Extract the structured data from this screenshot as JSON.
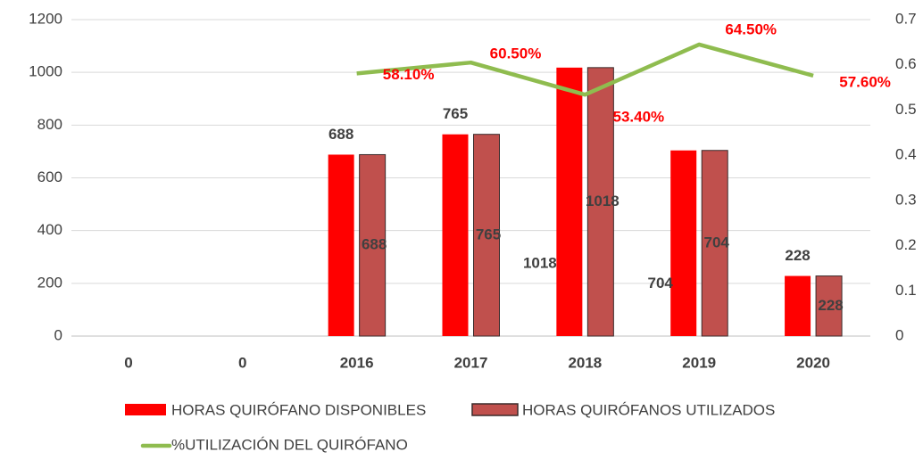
{
  "chart_data": {
    "type": "bar",
    "categories": [
      "0",
      "0",
      "2016",
      "2017",
      "2018",
      "2019",
      "2020"
    ],
    "series": [
      {
        "name": "HORAS QUIRÓFANO DISPONIBLES",
        "color": "#ff0000",
        "values": [
          null,
          null,
          688,
          765,
          1018,
          704,
          228
        ]
      },
      {
        "name": "HORAS QUIRÓFANOS UTILIZADOS",
        "color": "#c0504d",
        "values": [
          null,
          null,
          688,
          765,
          1018,
          704,
          228
        ]
      },
      {
        "name": "%UTILIZACIÓN DEL QUIRÓFANO",
        "type": "line",
        "axis": "y2",
        "color": "#8fbc4f",
        "values": [
          null,
          null,
          0.581,
          0.605,
          0.534,
          0.645,
          0.576
        ],
        "value_labels": [
          null,
          null,
          "58.10%",
          "60.50%",
          "53.40%",
          "64.50%",
          "57.60%"
        ]
      }
    ],
    "ylim": [
      0,
      1200
    ],
    "yticks": [
      0,
      200,
      400,
      600,
      800,
      1000,
      1200
    ],
    "y2lim": [
      0,
      0.7
    ],
    "y2ticks": [
      0,
      0.1,
      0.2,
      0.3,
      0.4,
      0.5,
      0.6,
      0.7
    ],
    "grid": true
  }
}
